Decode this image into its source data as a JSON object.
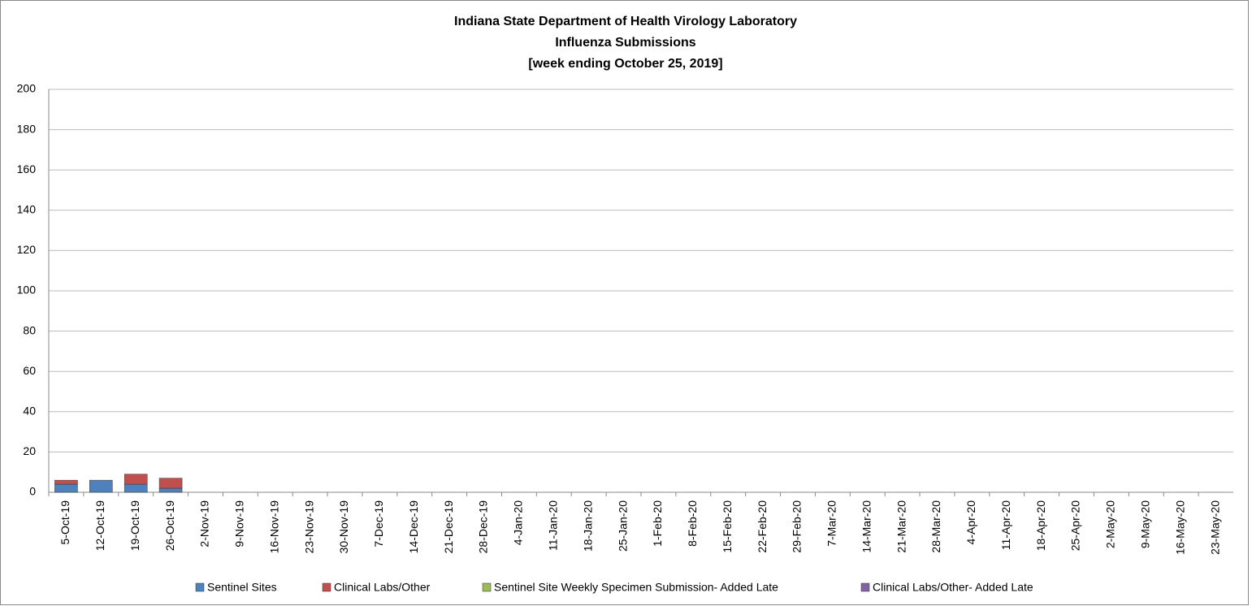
{
  "chart_data": {
    "type": "stacked_bar",
    "title": [
      "Indiana State Department of Health Virology Laboratory",
      "Influenza Submissions",
      "[week ending October 25, 2019]"
    ],
    "categories": [
      "5-Oct-19",
      "12-Oct-19",
      "19-Oct-19",
      "26-Oct-19",
      "2-Nov-19",
      "9-Nov-19",
      "16-Nov-19",
      "23-Nov-19",
      "30-Nov-19",
      "7-Dec-19",
      "14-Dec-19",
      "21-Dec-19",
      "28-Dec-19",
      "4-Jan-20",
      "11-Jan-20",
      "18-Jan-20",
      "25-Jan-20",
      "1-Feb-20",
      "8-Feb-20",
      "15-Feb-20",
      "22-Feb-20",
      "29-Feb-20",
      "7-Mar-20",
      "14-Mar-20",
      "21-Mar-20",
      "28-Mar-20",
      "4-Apr-20",
      "11-Apr-20",
      "18-Apr-20",
      "25-Apr-20",
      "2-May-20",
      "9-May-20",
      "16-May-20",
      "23-May-20"
    ],
    "series": [
      {
        "name": "Sentinel Sites",
        "color": "#4f81bd",
        "values": [
          4,
          6,
          4,
          2,
          null,
          null,
          null,
          null,
          null,
          null,
          null,
          null,
          null,
          null,
          null,
          null,
          null,
          null,
          null,
          null,
          null,
          null,
          null,
          null,
          null,
          null,
          null,
          null,
          null,
          null,
          null,
          null,
          null,
          null
        ]
      },
      {
        "name": "Clinical Labs/Other",
        "color": "#c0504d",
        "values": [
          2,
          0,
          5,
          5,
          null,
          null,
          null,
          null,
          null,
          null,
          null,
          null,
          null,
          null,
          null,
          null,
          null,
          null,
          null,
          null,
          null,
          null,
          null,
          null,
          null,
          null,
          null,
          null,
          null,
          null,
          null,
          null,
          null,
          null
        ]
      },
      {
        "name": "Sentinel Site Weekly Specimen Submission- Added Late",
        "color": "#9bbb59",
        "values": [
          0,
          0,
          0,
          0,
          null,
          null,
          null,
          null,
          null,
          null,
          null,
          null,
          null,
          null,
          null,
          null,
          null,
          null,
          null,
          null,
          null,
          null,
          null,
          null,
          null,
          null,
          null,
          null,
          null,
          null,
          null,
          null,
          null,
          null
        ]
      },
      {
        "name": "Clinical Labs/Other- Added Late",
        "color": "#8064a2",
        "values": [
          0,
          0,
          0,
          0,
          null,
          null,
          null,
          null,
          null,
          null,
          null,
          null,
          null,
          null,
          null,
          null,
          null,
          null,
          null,
          null,
          null,
          null,
          null,
          null,
          null,
          null,
          null,
          null,
          null,
          null,
          null,
          null,
          null,
          null
        ]
      }
    ],
    "ylim": [
      0,
      200
    ],
    "yticks": [
      0,
      20,
      40,
      60,
      80,
      100,
      120,
      140,
      160,
      180,
      200
    ],
    "grid": true,
    "legend": "bottom"
  }
}
